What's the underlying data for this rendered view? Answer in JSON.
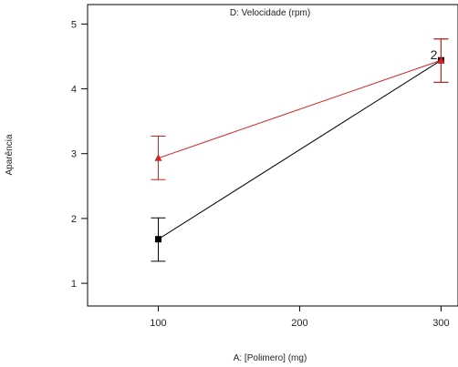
{
  "chart_data": {
    "type": "line",
    "title": "",
    "legend_title": "D: Velocidade (rpm)",
    "xlabel": "A: [Polimero] (mg)",
    "ylabel": "Aparência",
    "xlim": [
      50,
      312
    ],
    "ylim": [
      0.65,
      5.3
    ],
    "x_ticks": [
      100,
      200,
      300
    ],
    "y_ticks": [
      1,
      2,
      3,
      4,
      5
    ],
    "grid": false,
    "series": [
      {
        "color": "#000000",
        "marker": "square",
        "x": [
          100,
          300
        ],
        "y": [
          1.68,
          4.44
        ],
        "y_low": [
          1.34,
          4.1
        ],
        "y_high": [
          2.01,
          4.77
        ]
      },
      {
        "color": "#d62020",
        "marker": "triangle",
        "x": [
          100,
          300
        ],
        "y": [
          2.93,
          4.44
        ],
        "y_low": [
          2.6,
          4.1
        ],
        "y_high": [
          3.27,
          4.77
        ]
      }
    ],
    "annotations": [
      {
        "text": "2",
        "x": 300,
        "y": 4.44
      }
    ]
  }
}
